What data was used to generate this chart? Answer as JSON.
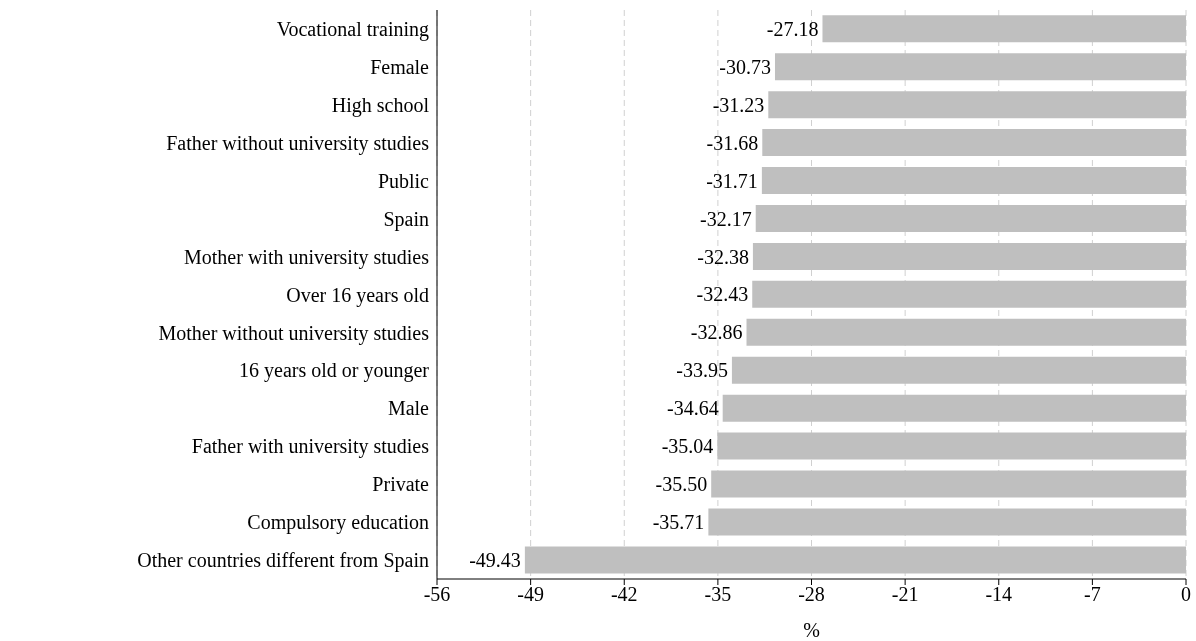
{
  "chart_data": {
    "type": "bar",
    "orientation": "horizontal",
    "xlabel": "%",
    "categories": [
      "Vocational training",
      "Female",
      "High school",
      "Father without university studies",
      "Public",
      "Spain",
      "Mother with university studies",
      "Over 16 years old",
      "Mother without university studies",
      "16 years old or younger",
      "Male",
      "Father with university studies",
      "Private",
      "Compulsory education",
      "Other countries different from Spain"
    ],
    "values": [
      -27.18,
      -30.73,
      -31.23,
      -31.68,
      -31.71,
      -32.17,
      -32.38,
      -32.43,
      -32.86,
      -33.95,
      -34.64,
      -35.04,
      -35.5,
      -35.71,
      -49.43
    ],
    "value_labels": [
      "-27.18",
      "-30.73",
      "-31.23",
      "-31.68",
      "-31.71",
      "-32.17",
      "-32.38",
      "-32.43",
      "-32.86",
      "-33.95",
      "-34.64",
      "-35.04",
      "-35.50",
      "-35.71",
      "-49.43"
    ],
    "color": "#bfbfbf",
    "xlim": [
      -56,
      0
    ],
    "xticks": [
      -56,
      -49,
      -42,
      -35,
      -28,
      -21,
      -14,
      -7,
      0
    ],
    "grid": "x"
  }
}
